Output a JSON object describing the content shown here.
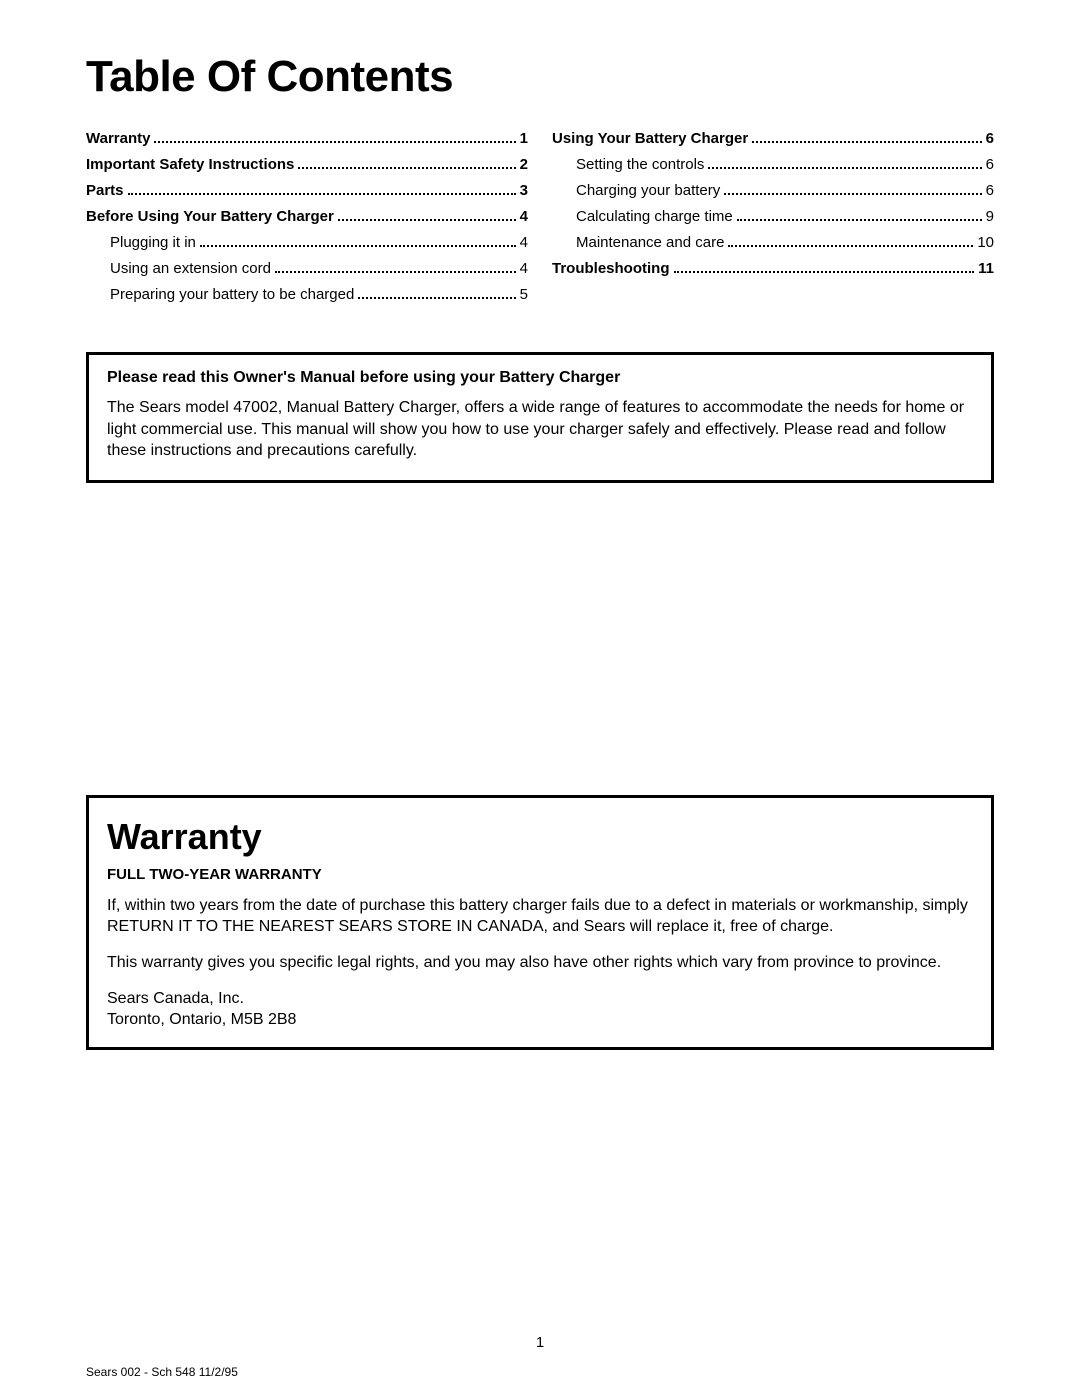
{
  "title": "Table Of Contents",
  "toc": {
    "left": [
      {
        "label": "Warranty",
        "page": "1",
        "bold": true,
        "sub": false
      },
      {
        "label": "Important Safety Instructions",
        "page": "2",
        "bold": true,
        "sub": false
      },
      {
        "label": "Parts",
        "page": "3",
        "bold": true,
        "sub": false
      },
      {
        "label": "Before Using Your Battery Charger",
        "page": "4",
        "bold": true,
        "sub": false
      },
      {
        "label": "Plugging it in",
        "page": "4",
        "bold": false,
        "sub": true
      },
      {
        "label": "Using an extension cord",
        "page": "4",
        "bold": false,
        "sub": true
      },
      {
        "label": "Preparing your battery to be charged",
        "page": "5",
        "bold": false,
        "sub": true
      }
    ],
    "right": [
      {
        "label": "Using Your Battery Charger",
        "page": "6",
        "bold": true,
        "sub": false
      },
      {
        "label": "Setting the controls",
        "page": "6",
        "bold": false,
        "sub": true
      },
      {
        "label": "Charging your battery",
        "page": "6",
        "bold": false,
        "sub": true
      },
      {
        "label": "Calculating charge time",
        "page": "9",
        "bold": false,
        "sub": true
      },
      {
        "label": "Maintenance and care",
        "page": "10",
        "bold": false,
        "sub": true
      },
      {
        "label": "Troubleshooting",
        "page": "11",
        "bold": true,
        "sub": false
      }
    ]
  },
  "notice": {
    "heading": "Please read this Owner's Manual before using your Battery Charger",
    "body": "The Sears model 47002, Manual Battery Charger, offers a wide range of features to accommodate the needs for home or light commercial use. This manual will show you how to use your charger safely and effectively. Please read and follow these instructions and precautions carefully."
  },
  "warranty": {
    "title": "Warranty",
    "subtitle": "FULL TWO-YEAR WARRANTY",
    "p1": "If, within two years from the date of purchase this battery charger fails due to a defect in materials or workmanship, simply RETURN IT TO THE NEAREST SEARS STORE IN CANADA, and Sears will replace it, free of charge.",
    "p2": "This warranty gives you specific legal rights, and you may also have other rights which vary from province to province.",
    "p3a": "Sears Canada, Inc.",
    "p3b": "Toronto, Ontario, M5B 2B8"
  },
  "page_number": "1",
  "footer": "Sears 002 - Sch 548 11/2/95"
}
